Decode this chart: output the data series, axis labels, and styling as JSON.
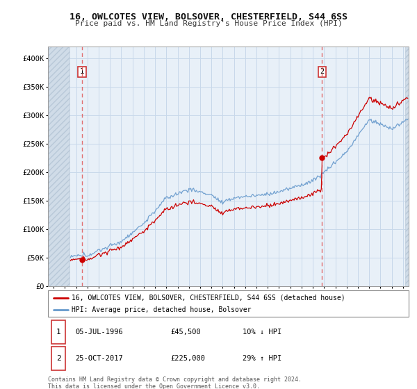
{
  "title": "16, OWLCOTES VIEW, BOLSOVER, CHESTERFIELD, S44 6SS",
  "subtitle": "Price paid vs. HM Land Registry's House Price Index (HPI)",
  "legend_line1": "16, OWLCOTES VIEW, BOLSOVER, CHESTERFIELD, S44 6SS (detached house)",
  "legend_line2": "HPI: Average price, detached house, Bolsover",
  "annotation1_date": "05-JUL-1996",
  "annotation1_price": "£45,500",
  "annotation1_hpi": "10% ↓ HPI",
  "annotation2_date": "25-OCT-2017",
  "annotation2_price": "£225,000",
  "annotation2_hpi": "29% ↑ HPI",
  "footer": "Contains HM Land Registry data © Crown copyright and database right 2024.\nThis data is licensed under the Open Government Licence v3.0.",
  "transaction1_x": 1996.51,
  "transaction1_y": 45500,
  "transaction2_x": 2017.81,
  "transaction2_y": 225000,
  "ylim": [
    0,
    420000
  ],
  "xlim": [
    1993.5,
    2025.5
  ],
  "hatch_end_x": 1995.42,
  "price_color": "#cc0000",
  "hpi_color": "#6699cc",
  "vline_color": "#e06060",
  "grid_color": "#c8d8ea",
  "background_color": "#ffffff",
  "plot_bg_color": "#e8f0f8",
  "hatch_color": "#d0dce8"
}
